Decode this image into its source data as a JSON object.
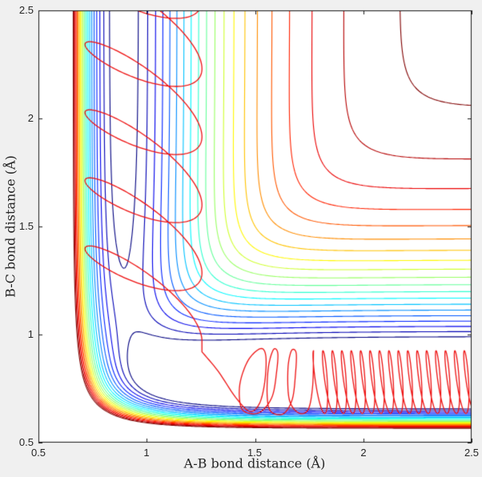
{
  "figure": {
    "background": "#f0f0f0",
    "plot_background": "#ffffff",
    "box_color": "#1a1a1a",
    "tick_text_color": "#262626"
  },
  "axes": {
    "xlabel": "A-B bond distance (Å)",
    "ylabel": "B-C bond distance (Å)",
    "xticks": [
      {
        "label": "0.5"
      },
      {
        "label": "1"
      },
      {
        "label": "1.5"
      },
      {
        "label": "2"
      },
      {
        "label": "2.5"
      }
    ],
    "yticks": [
      {
        "label": "0.5"
      },
      {
        "label": "1"
      },
      {
        "label": "1.5"
      },
      {
        "label": "2"
      },
      {
        "label": "2.5"
      }
    ]
  },
  "chart_data": {
    "type": "contour",
    "title": "",
    "xlabel": "A-B bond distance (Å)",
    "ylabel": "B-C bond distance (Å)",
    "xlim": [
      0.5,
      2.5
    ],
    "ylim": [
      0.5,
      2.5
    ],
    "xtick_values": [
      0.5,
      1,
      1.5,
      2,
      2.5
    ],
    "ytick_values": [
      0.5,
      1,
      1.5,
      2,
      2.5
    ],
    "grid": false,
    "legend": "none",
    "colormap": "jet",
    "n_levels": 20,
    "level_min": -4.56,
    "level_max": -0.2,
    "grid_n": 240,
    "potential": {
      "model": "LEPS collinear A-B-C",
      "sato": 0.05,
      "AB": {
        "D": 4.75,
        "beta": 3.0,
        "r0": 0.888
      },
      "BC": {
        "D": 6.0,
        "beta": 3.2,
        "r0": 0.78
      },
      "AC": {
        "D": 5.3,
        "beta": 2.8,
        "r0": 0.83
      },
      "reactant_valley_AB": 0.888,
      "product_valley_BC": 0.78
    },
    "trajectory": {
      "color": "#ee1111",
      "description": "reactive trajectory: AB+C -> A+BC, enters top with AB vibration, exits right with hot BC vibration",
      "phase1_entrance_loops": {
        "theta_start": -3.4,
        "loops": 5,
        "step": 0.035,
        "x_center": 0.985,
        "x_amp": 0.27,
        "y_start": 2.68,
        "drift_per_loop": 0.315,
        "y_amp": 0.175,
        "y_phase": 2.45
      },
      "phase2_corner_points": [
        [
          1.255,
          0.92
        ],
        [
          1.33,
          0.83
        ],
        [
          1.41,
          0.71
        ],
        [
          1.475,
          0.645
        ],
        [
          1.52,
          0.68
        ],
        [
          1.545,
          0.78
        ],
        [
          1.55,
          0.9
        ],
        [
          1.525,
          0.935
        ],
        [
          1.468,
          0.88
        ],
        [
          1.43,
          0.77
        ],
        [
          1.435,
          0.665
        ],
        [
          1.475,
          0.635
        ],
        [
          1.53,
          0.645
        ],
        [
          1.58,
          0.715
        ],
        [
          1.6,
          0.83
        ],
        [
          1.605,
          0.915
        ],
        [
          1.585,
          0.93
        ],
        [
          1.562,
          0.85
        ],
        [
          1.556,
          0.72
        ],
        [
          1.572,
          0.645
        ],
        [
          1.63,
          0.633
        ],
        [
          1.672,
          0.7
        ],
        [
          1.687,
          0.82
        ],
        [
          1.69,
          0.915
        ],
        [
          1.668,
          0.925
        ],
        [
          1.652,
          0.84
        ],
        [
          1.658,
          0.7
        ],
        [
          1.7,
          0.638
        ],
        [
          1.745,
          0.652
        ],
        [
          1.766,
          0.76
        ],
        [
          1.77,
          0.92
        ]
      ],
      "phase3_product_oscillation": {
        "x_start": 1.785,
        "period": 0.0435,
        "n_teeth": 17.3,
        "step": 0.06,
        "y_center": 0.78,
        "y_amp": 0.145,
        "x_amp": 0.022,
        "x_phase": 2.3
      }
    }
  }
}
